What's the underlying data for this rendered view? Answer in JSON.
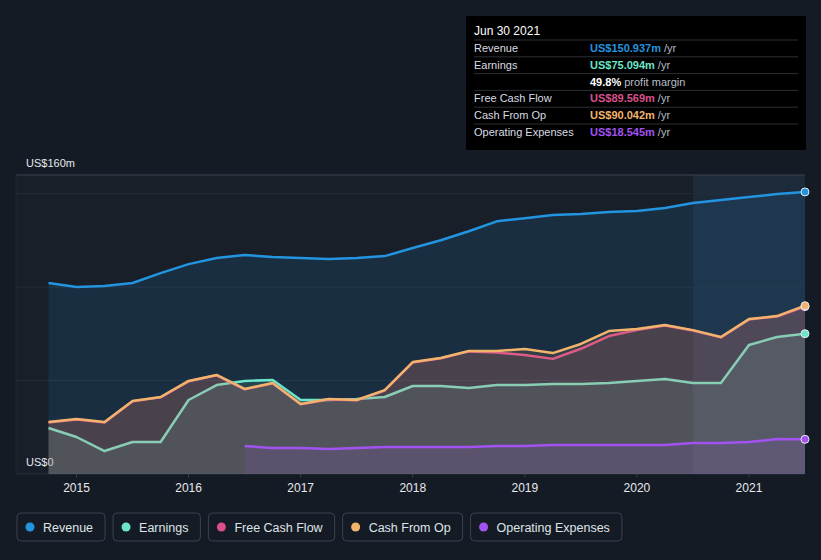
{
  "chart_data": {
    "type": "line",
    "x": [
      2014.75,
      2015.0,
      2015.25,
      2015.5,
      2015.75,
      2016.0,
      2016.25,
      2016.5,
      2016.75,
      2017.0,
      2017.25,
      2017.5,
      2017.75,
      2018.0,
      2018.25,
      2018.5,
      2018.75,
      2019.0,
      2019.25,
      2019.5,
      2019.75,
      2020.0,
      2020.25,
      2020.5,
      2020.75,
      2021.0,
      2021.25,
      2021.5
    ],
    "xlim": [
      2014.46,
      2021.5
    ],
    "xticks": [
      2015,
      2016,
      2017,
      2018,
      2019,
      2020,
      2021
    ],
    "ylim": [
      0,
      160
    ],
    "yticks": [
      {
        "value": 0,
        "label": "US$0"
      },
      {
        "value": 50,
        "label": null
      },
      {
        "value": 100,
        "label": null
      },
      {
        "value": 150,
        "label": null
      },
      {
        "value": 160,
        "label": "US$160m"
      }
    ],
    "grid": true,
    "legend": "bottom",
    "series": [
      {
        "name": "Revenue",
        "color": "#2394df",
        "values": [
          102.2,
          100.1,
          100.6,
          102.2,
          107.5,
          112.3,
          115.6,
          117.2,
          116.1,
          115.6,
          115.0,
          115.6,
          116.6,
          120.9,
          125.1,
          129.9,
          135.2,
          136.9,
          138.6,
          139.1,
          140.2,
          140.7,
          142.3,
          145.0,
          146.6,
          148.2,
          149.8,
          150.937
        ]
      },
      {
        "name": "Earnings",
        "color": "#6ce5c8",
        "values": [
          24.6,
          19.8,
          12.3,
          17.1,
          17.1,
          39.6,
          47.6,
          49.8,
          50.3,
          39.6,
          39.6,
          40.1,
          41.2,
          47.1,
          47.1,
          46.0,
          47.6,
          47.6,
          48.2,
          48.2,
          48.7,
          49.8,
          50.8,
          48.7,
          48.7,
          69.0,
          73.3,
          75.094
        ]
      },
      {
        "name": "Free Cash Flow",
        "color": "#d9508c",
        "values": [
          27.6,
          29.2,
          27.6,
          38.9,
          41.0,
          49.6,
          52.8,
          45.3,
          48.5,
          37.3,
          39.9,
          39.4,
          44.7,
          59.7,
          61.9,
          65.6,
          65.0,
          63.7,
          61.6,
          67.0,
          73.8,
          77.0,
          79.5,
          76.8,
          73.1,
          82.7,
          84.3,
          89.569
        ]
      },
      {
        "name": "Cash From Op",
        "color": "#f2b46c",
        "values": [
          27.8,
          29.4,
          27.8,
          39.1,
          41.2,
          49.8,
          53.0,
          45.5,
          48.7,
          37.5,
          40.1,
          39.6,
          44.9,
          59.9,
          62.1,
          65.8,
          65.8,
          66.9,
          64.7,
          69.6,
          76.5,
          77.6,
          79.7,
          77.0,
          73.3,
          82.9,
          84.5,
          90.042
        ]
      },
      {
        "name": "Operating Expenses",
        "color": "#a352f2",
        "values": [
          null,
          null,
          null,
          null,
          null,
          null,
          null,
          15.0,
          13.9,
          13.9,
          13.4,
          13.9,
          14.4,
          14.4,
          14.4,
          14.4,
          15.0,
          15.0,
          15.5,
          15.5,
          15.5,
          15.5,
          15.5,
          16.6,
          16.6,
          17.1,
          18.7,
          18.545
        ]
      }
    ],
    "annotations": {
      "date": "Jun 30 2021",
      "rows": [
        {
          "label": "Revenue",
          "text": "US$150.937m",
          "unit": "/yr"
        },
        {
          "label": "Earnings",
          "text": "US$75.094m",
          "unit": "/yr"
        },
        {
          "text": "49.8%",
          "unit": "profit margin"
        },
        {
          "label": "Free Cash Flow",
          "text": "US$89.569m",
          "unit": "/yr"
        },
        {
          "label": "Cash From Op",
          "text": "US$90.042m",
          "unit": "/yr"
        },
        {
          "label": "Operating Expenses",
          "text": "US$18.545m",
          "unit": "/yr"
        }
      ]
    }
  }
}
